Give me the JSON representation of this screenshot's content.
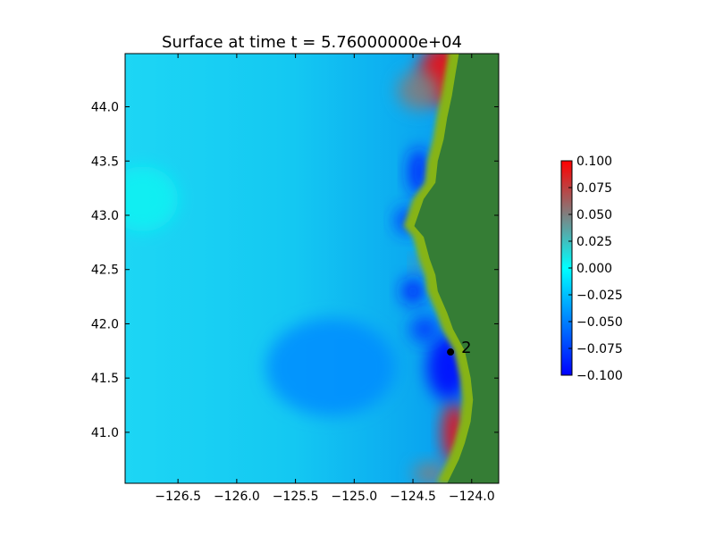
{
  "chart_data": {
    "type": "heatmap",
    "title": "Surface at time t = 5.76000000e+04",
    "xlabel": "",
    "ylabel": "",
    "xlim": [
      -126.95,
      -123.77
    ],
    "ylim": [
      40.53,
      44.49
    ],
    "x_ticks": [
      -126.5,
      -126.0,
      -125.5,
      -125.0,
      -124.5,
      -124.0
    ],
    "x_tick_labels": [
      "−126.5",
      "−126.0",
      "−125.5",
      "−125.0",
      "−124.5",
      "−124.0"
    ],
    "y_ticks": [
      41.0,
      41.5,
      42.0,
      42.5,
      43.0,
      43.5,
      44.0
    ],
    "y_tick_labels": [
      "41.0",
      "41.5",
      "42.0",
      "42.5",
      "43.0",
      "43.5",
      "44.0"
    ],
    "colorbar": {
      "min": -0.1,
      "max": 0.1,
      "ticks": [
        0.1,
        0.075,
        0.05,
        0.025,
        0.0,
        -0.025,
        -0.05,
        -0.075,
        -0.1
      ],
      "tick_labels": [
        "0.100",
        "0.075",
        "0.050",
        "0.025",
        "0.000",
        "−0.025",
        "−0.050",
        "−0.075",
        "−0.100"
      ],
      "colors": [
        "#0000ff",
        "#00ffff",
        "#ff0000"
      ]
    },
    "land_color": "#357d35",
    "shore_color": "#86b415",
    "coastline": [
      [
        -124.2,
        44.49
      ],
      [
        -124.23,
        44.3
      ],
      [
        -124.26,
        44.1
      ],
      [
        -124.3,
        43.9
      ],
      [
        -124.33,
        43.7
      ],
      [
        -124.38,
        43.5
      ],
      [
        -124.4,
        43.3
      ],
      [
        -124.5,
        43.15
      ],
      [
        -124.58,
        42.9
      ],
      [
        -124.5,
        42.8
      ],
      [
        -124.45,
        42.6
      ],
      [
        -124.4,
        42.45
      ],
      [
        -124.38,
        42.3
      ],
      [
        -124.3,
        42.1
      ],
      [
        -124.25,
        41.95
      ],
      [
        -124.2,
        41.85
      ],
      [
        -124.15,
        41.75
      ],
      [
        -124.1,
        41.5
      ],
      [
        -124.08,
        41.3
      ],
      [
        -124.1,
        41.1
      ],
      [
        -124.15,
        40.9
      ],
      [
        -124.2,
        40.75
      ],
      [
        -124.3,
        40.53
      ]
    ],
    "anomalies": [
      {
        "lon": -124.23,
        "lat": 44.3,
        "value": 0.1,
        "rx": 0.22,
        "ry": 0.28
      },
      {
        "lon": -124.45,
        "lat": 44.15,
        "value": 0.05,
        "rx": 0.18,
        "ry": 0.18
      },
      {
        "lon": -124.15,
        "lat": 41.0,
        "value": 0.1,
        "rx": 0.1,
        "ry": 0.28
      },
      {
        "lon": -124.35,
        "lat": 40.62,
        "value": 0.05,
        "rx": 0.15,
        "ry": 0.1
      },
      {
        "lon": -124.45,
        "lat": 42.55,
        "value": 0.05,
        "rx": 0.05,
        "ry": 0.06
      },
      {
        "lon": -124.2,
        "lat": 41.6,
        "value": -0.1,
        "rx": 0.18,
        "ry": 0.3
      },
      {
        "lon": -124.45,
        "lat": 43.4,
        "value": -0.09,
        "rx": 0.09,
        "ry": 0.22
      },
      {
        "lon": -124.55,
        "lat": 42.95,
        "value": -0.08,
        "rx": 0.1,
        "ry": 0.12
      },
      {
        "lon": -124.5,
        "lat": 42.3,
        "value": -0.09,
        "rx": 0.1,
        "ry": 0.12
      },
      {
        "lon": -124.4,
        "lat": 41.95,
        "value": -0.08,
        "rx": 0.12,
        "ry": 0.12
      },
      {
        "lon": -126.8,
        "lat": 43.15,
        "value": 0.005,
        "rx": 0.3,
        "ry": 0.3
      },
      {
        "lon": -125.2,
        "lat": 41.6,
        "value": -0.045,
        "rx": 0.55,
        "ry": 0.45
      }
    ],
    "gauge": {
      "label": "2",
      "lon": -124.18,
      "lat": 41.74
    }
  }
}
